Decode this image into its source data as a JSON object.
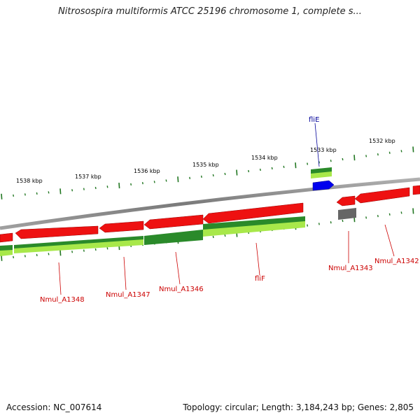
{
  "title": "Nitrosospira multiformis ATCC 25196 chromosome 1, complete s...",
  "footer": {
    "accession": "Accession: NC_007614",
    "summary": "Topology: circular; Length: 3,184,243 bp; Genes: 2,805"
  },
  "colors": {
    "gene_label": "#cc0000",
    "highlight_label": "#000099",
    "forward_gene": "#ee0000",
    "reverse_gene": "#ee0000",
    "cds_dark": "#228822",
    "cds_light": "#aaee44",
    "backbone": "#888888",
    "tick": "#227722",
    "selected_gene": "#0000ee",
    "pseudo_gene": "#666666"
  },
  "ruler_labels": [
    "1538 kbp",
    "1537 kbp",
    "1536 kbp",
    "1535 kbp",
    "1534 kbp",
    "1533 kbp",
    "1532 kbp"
  ],
  "gene_labels": [
    "fliE",
    "Nmul_A1348",
    "Nmul_A1347",
    "Nmul_A1346",
    "fliF",
    "Nmul_A1343",
    "Nmul_A1342"
  ]
}
